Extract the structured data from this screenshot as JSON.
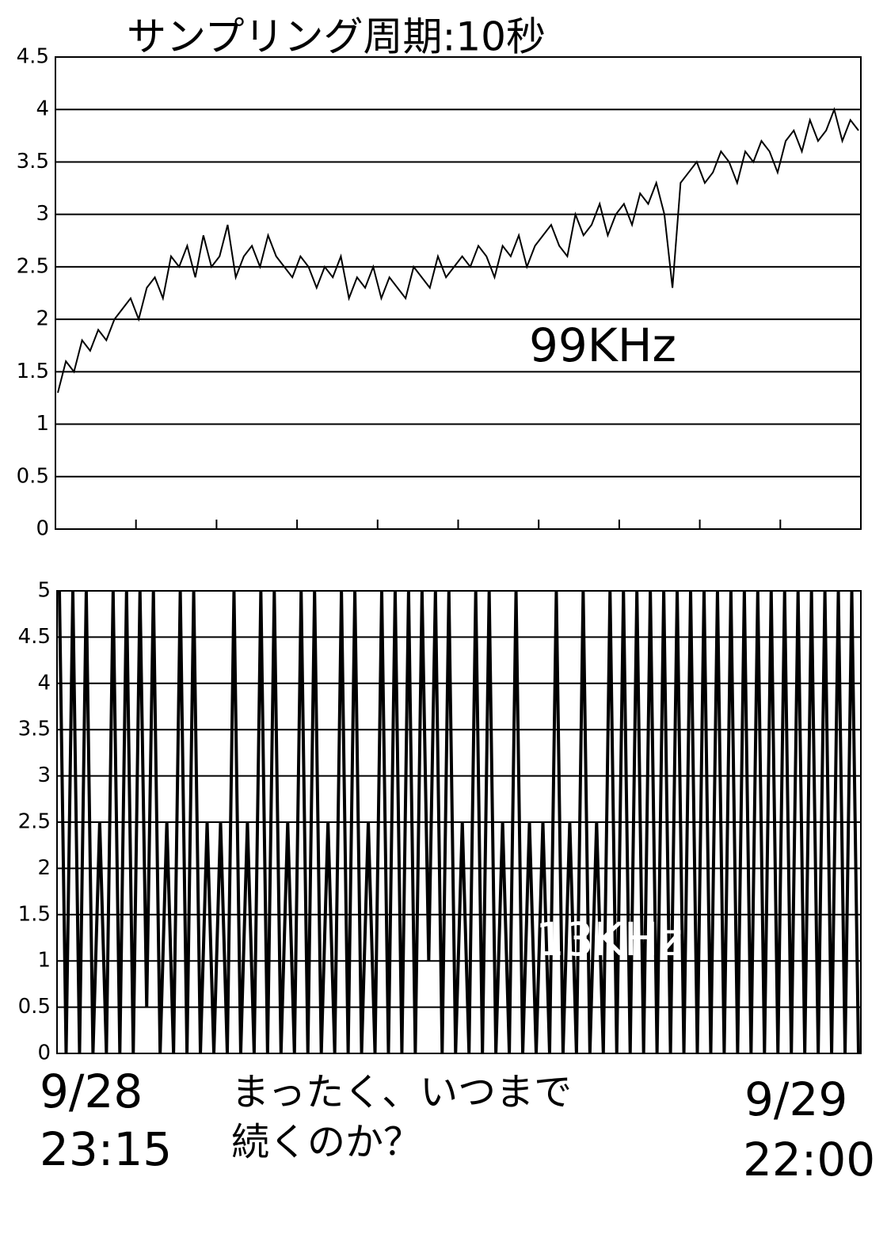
{
  "chart_data": [
    {
      "type": "line",
      "title": "サンプリング周期:10秒",
      "series": [
        {
          "color": "#000000",
          "values": [
            1.3,
            1.6,
            1.5,
            1.8,
            1.7,
            1.9,
            1.8,
            2.0,
            2.1,
            2.2,
            2.0,
            2.3,
            2.4,
            2.2,
            2.6,
            2.5,
            2.7,
            2.4,
            2.8,
            2.5,
            2.6,
            2.9,
            2.4,
            2.6,
            2.7,
            2.5,
            2.8,
            2.6,
            2.5,
            2.4,
            2.6,
            2.5,
            2.3,
            2.5,
            2.4,
            2.6,
            2.2,
            2.4,
            2.3,
            2.5,
            2.2,
            2.4,
            2.3,
            2.2,
            2.5,
            2.4,
            2.3,
            2.6,
            2.4,
            2.5,
            2.6,
            2.5,
            2.7,
            2.6,
            2.4,
            2.7,
            2.6,
            2.8,
            2.5,
            2.7,
            2.8,
            2.9,
            2.7,
            2.6,
            3.0,
            2.8,
            2.9,
            3.1,
            2.8,
            3.0,
            3.1,
            2.9,
            3.2,
            3.1,
            3.3,
            3.0,
            2.3,
            3.3,
            3.4,
            3.5,
            3.3,
            3.4,
            3.6,
            3.5,
            3.3,
            3.6,
            3.5,
            3.7,
            3.6,
            3.4,
            3.7,
            3.8,
            3.6,
            3.9,
            3.7,
            3.8,
            4.0,
            3.7,
            3.9,
            3.8
          ]
        }
      ],
      "ylim": [
        0,
        4.5
      ],
      "yticks": [
        0,
        0.5,
        1,
        1.5,
        2,
        2.5,
        3,
        3.5,
        4,
        4.5
      ],
      "grid": true,
      "annotations": [
        "99KHz"
      ]
    },
    {
      "type": "line",
      "series": [
        {
          "color": "#000000",
          "values": [
            5,
            0,
            5,
            0,
            5,
            0,
            2.5,
            0,
            5,
            0,
            5,
            0,
            5,
            0.5,
            5,
            0,
            2.5,
            0,
            5,
            0,
            5,
            0,
            2.5,
            0,
            2.5,
            0,
            5,
            0,
            2.5,
            0,
            5,
            0,
            5,
            0,
            2.5,
            0,
            5,
            0,
            5,
            0,
            2.5,
            0,
            5,
            0,
            5,
            0,
            2.5,
            0,
            5,
            0,
            5,
            0,
            5,
            0,
            5,
            1,
            5,
            0,
            5,
            0,
            2.5,
            0,
            5,
            0,
            5,
            0,
            2.5,
            0,
            5,
            0,
            2.5,
            0,
            2.5,
            0,
            5,
            0,
            2.5,
            0,
            5,
            0,
            2.5,
            0,
            5,
            0,
            5,
            0,
            5,
            0,
            5,
            0,
            5,
            0,
            5,
            0,
            5,
            0,
            5,
            0,
            5,
            0,
            5,
            0,
            5,
            0,
            5,
            0,
            5,
            0,
            5,
            0,
            5,
            0,
            5,
            0,
            5,
            0,
            5,
            0,
            5,
            0
          ]
        }
      ],
      "ylim": [
        0,
        5
      ],
      "yticks": [
        0,
        0.5,
        1,
        1.5,
        2,
        2.5,
        3,
        3.5,
        4,
        4.5,
        5
      ],
      "grid": true,
      "annotations": [
        "13KHz",
        "9/28",
        "23:15",
        "まったく、いつまで",
        "続くのか？",
        "9/29",
        "22:00"
      ]
    }
  ]
}
